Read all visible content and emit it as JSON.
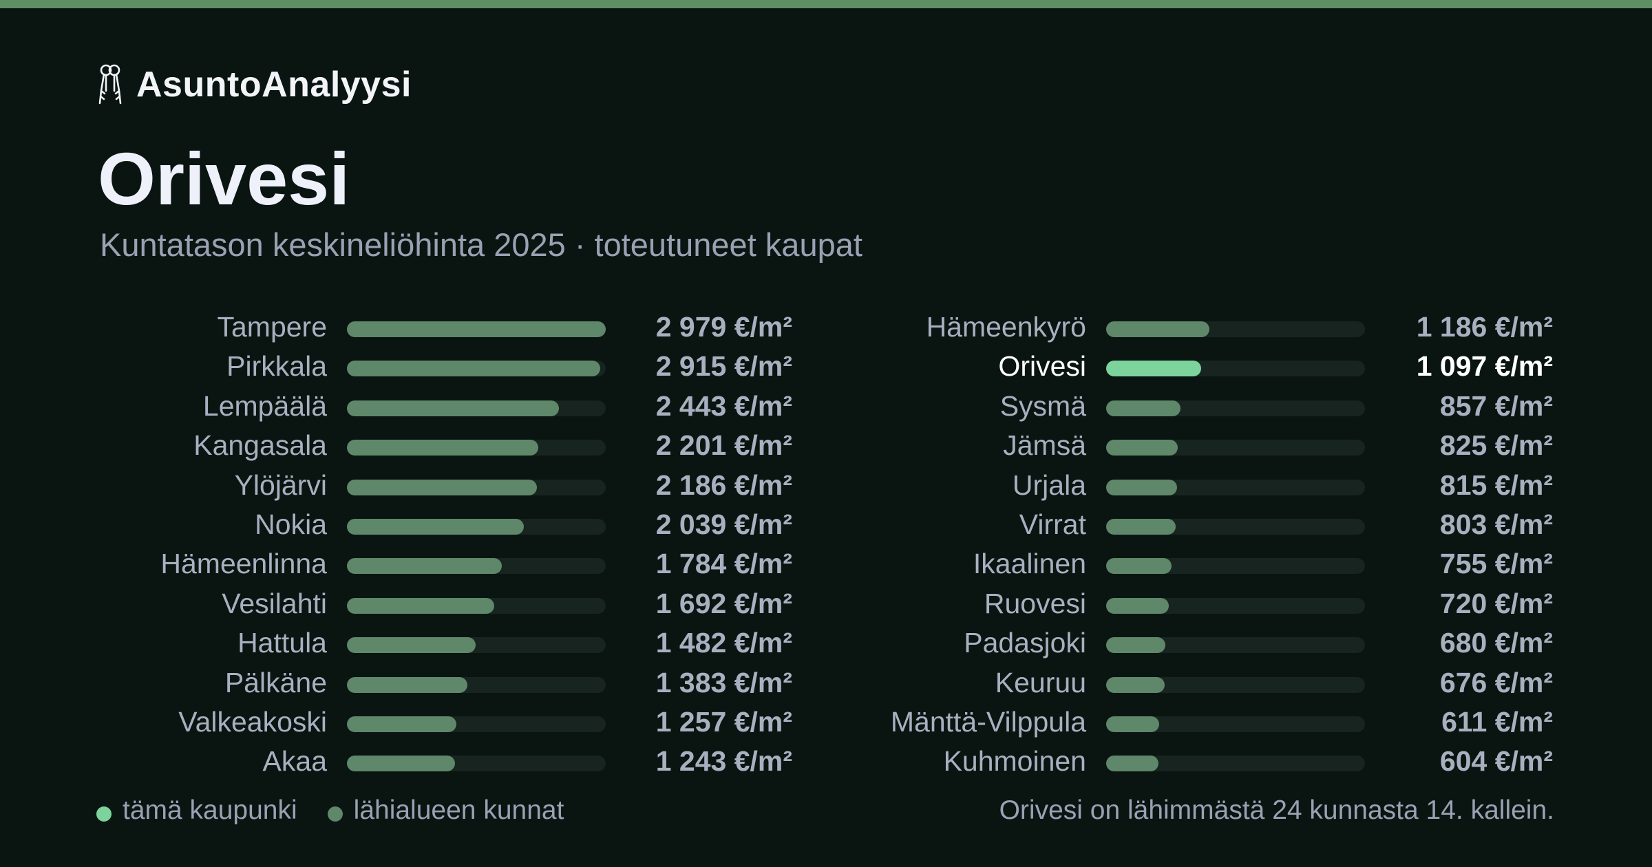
{
  "brand": {
    "name": "AsuntoAnalyysi",
    "icon": "keys-icon"
  },
  "title": "Orivesi",
  "subtitle": "Kuntatason keskineliöhinta 2025 · toteutuneet kaupat",
  "legend": {
    "city": "tämä kaupunki",
    "area": "lähialueen kunnat"
  },
  "note": "Orivesi on lähimmästä 24 kunnasta 14. kallein.",
  "colors": {
    "background": "#0a1512",
    "highlight": "#7dd39c",
    "bar": "#5f876a",
    "track": "#17241f",
    "accent": "#5d9064"
  },
  "chart_data": {
    "type": "bar",
    "orientation": "horizontal",
    "unit": "€/m²",
    "highlight": "Orivesi",
    "xlim": [
      0,
      2979
    ],
    "categories": [
      "Tampere",
      "Pirkkala",
      "Lempäälä",
      "Kangasala",
      "Ylöjärvi",
      "Nokia",
      "Hämeenlinna",
      "Vesilahti",
      "Hattula",
      "Pälkäne",
      "Valkeakoski",
      "Akaa",
      "Hämeenkyrö",
      "Orivesi",
      "Sysmä",
      "Jämsä",
      "Urjala",
      "Virrat",
      "Ikaalinen",
      "Ruovesi",
      "Padasjoki",
      "Keuruu",
      "Mänttä-Vilppula",
      "Kuhmoinen"
    ],
    "values": [
      2979,
      2915,
      2443,
      2201,
      2186,
      2039,
      1784,
      1692,
      1482,
      1383,
      1257,
      1243,
      1186,
      1097,
      857,
      825,
      815,
      803,
      755,
      720,
      680,
      676,
      611,
      604
    ],
    "labels": [
      "2 979 €/m²",
      "2 915 €/m²",
      "2 443 €/m²",
      "2 201 €/m²",
      "2 186 €/m²",
      "2 039 €/m²",
      "1 784 €/m²",
      "1 692 €/m²",
      "1 482 €/m²",
      "1 383 €/m²",
      "1 257 €/m²",
      "1 243 €/m²",
      "1 186 €/m²",
      "1 097 €/m²",
      "857 €/m²",
      "825 €/m²",
      "815 €/m²",
      "803 €/m²",
      "755 €/m²",
      "720 €/m²",
      "680 €/m²",
      "676 €/m²",
      "611 €/m²",
      "604 €/m²"
    ]
  }
}
